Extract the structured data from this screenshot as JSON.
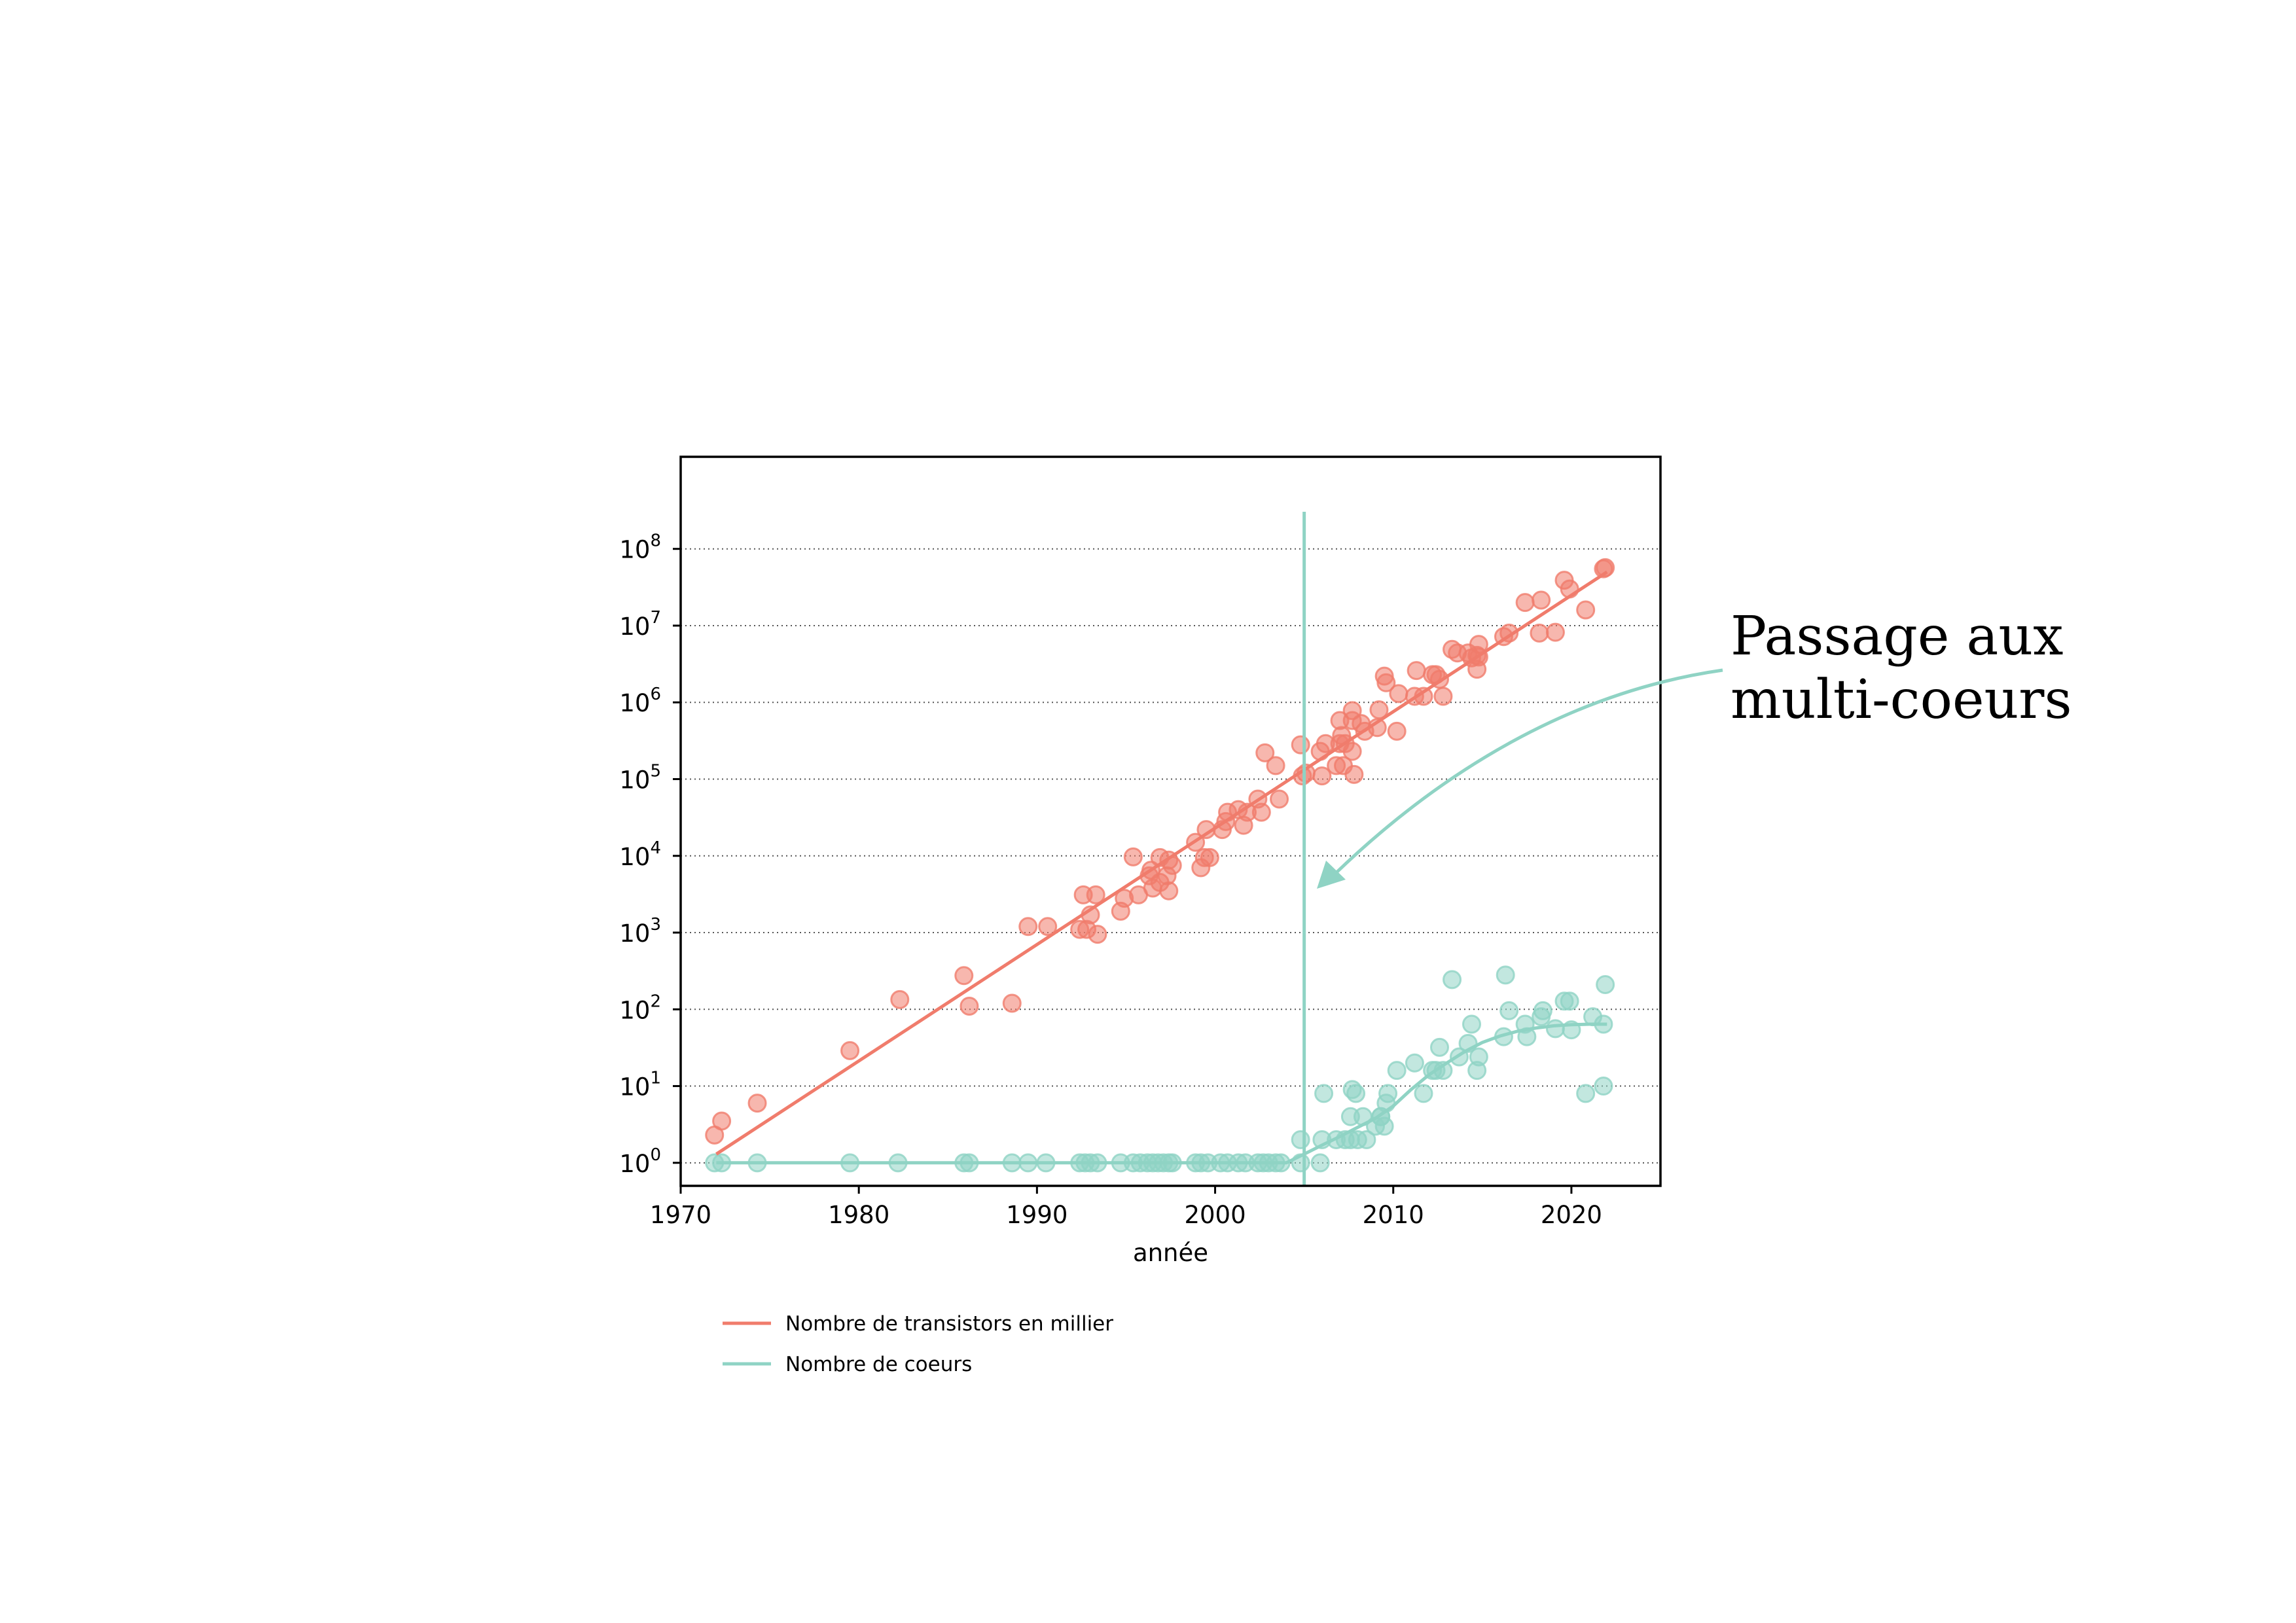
{
  "chart_data": {
    "type": "scatter",
    "xlabel": "année",
    "ylabel": "",
    "xlim": [
      1970,
      2025
    ],
    "ylim_log10": [
      -0.3,
      9.2
    ],
    "yscale": "log",
    "grid": "horizontal dotted",
    "legend_position": "below plot, left",
    "x_ticks": [
      "1970",
      "1980",
      "1990",
      "2000",
      "2010",
      "2020"
    ],
    "y_ticks": [
      {
        "base": "10",
        "exp": "0"
      },
      {
        "base": "10",
        "exp": "1"
      },
      {
        "base": "10",
        "exp": "2"
      },
      {
        "base": "10",
        "exp": "3"
      },
      {
        "base": "10",
        "exp": "4"
      },
      {
        "base": "10",
        "exp": "5"
      },
      {
        "base": "10",
        "exp": "6"
      },
      {
        "base": "10",
        "exp": "7"
      },
      {
        "base": "10",
        "exp": "8"
      }
    ],
    "vertical_line_year": 2005,
    "annotation": {
      "line1": "Passage aux",
      "line2": "multi-coeurs"
    },
    "series": [
      {
        "name": "Nombre de transistors en millier",
        "color": "#f07c6c",
        "trend": [
          [
            1972,
            1.3
          ],
          [
            2022,
            50000000
          ]
        ],
        "points": [
          [
            1971.9,
            2.3
          ],
          [
            1972.3,
            3.5
          ],
          [
            1974.3,
            6
          ],
          [
            1979.5,
            29
          ],
          [
            1982.3,
            134
          ],
          [
            1985.9,
            275
          ],
          [
            1986.2,
            110
          ],
          [
            1988.6,
            120
          ],
          [
            1989.5,
            1200
          ],
          [
            1990.6,
            1200
          ],
          [
            1992.4,
            1100
          ],
          [
            1992.6,
            3100
          ],
          [
            1992.8,
            1100
          ],
          [
            1993.0,
            1700
          ],
          [
            1993.3,
            3100
          ],
          [
            1993.4,
            950
          ],
          [
            1994.7,
            1900
          ],
          [
            1994.9,
            2800
          ],
          [
            1995.4,
            9700
          ],
          [
            1995.7,
            3100
          ],
          [
            1996.3,
            5500
          ],
          [
            1996.4,
            6500
          ],
          [
            1996.5,
            3800
          ],
          [
            1996.9,
            9500
          ],
          [
            1996.9,
            4500
          ],
          [
            1997.3,
            5500
          ],
          [
            1997.4,
            8800
          ],
          [
            1997.4,
            3500
          ],
          [
            1997.6,
            7500
          ],
          [
            1998.9,
            15000
          ],
          [
            1999.2,
            7000
          ],
          [
            1999.4,
            9500
          ],
          [
            1999.5,
            22000
          ],
          [
            1999.7,
            9500
          ],
          [
            2000.4,
            22000
          ],
          [
            2000.6,
            28000
          ],
          [
            2000.7,
            37000
          ],
          [
            2001.3,
            40000
          ],
          [
            2001.6,
            25000
          ],
          [
            2001.8,
            37000
          ],
          [
            2002.4,
            55000
          ],
          [
            2002.6,
            37000
          ],
          [
            2002.8,
            220000
          ],
          [
            2003.4,
            150000
          ],
          [
            2003.6,
            55000
          ],
          [
            2004.8,
            280000
          ],
          [
            2004.9,
            110000
          ],
          [
            2005.1,
            120000
          ],
          [
            2005.9,
            230000
          ],
          [
            2006.0,
            110000
          ],
          [
            2006.2,
            290000
          ],
          [
            2006.8,
            150000
          ],
          [
            2007.0,
            580000
          ],
          [
            2007.0,
            290000
          ],
          [
            2007.1,
            370000
          ],
          [
            2007.2,
            150000
          ],
          [
            2007.3,
            290000
          ],
          [
            2007.7,
            780000
          ],
          [
            2007.7,
            580000
          ],
          [
            2007.7,
            230000
          ],
          [
            2007.8,
            115000
          ],
          [
            2008.2,
            530000
          ],
          [
            2008.4,
            420000
          ],
          [
            2009.1,
            470000
          ],
          [
            2009.2,
            800000
          ],
          [
            2009.5,
            2200000
          ],
          [
            2009.6,
            1800000
          ],
          [
            2010.2,
            420000
          ],
          [
            2010.3,
            1300000
          ],
          [
            2011.2,
            1200000
          ],
          [
            2011.3,
            2600000
          ],
          [
            2011.7,
            1200000
          ],
          [
            2012.2,
            2300000
          ],
          [
            2012.4,
            2300000
          ],
          [
            2012.6,
            2000000
          ],
          [
            2012.8,
            1200000
          ],
          [
            2013.3,
            4900000
          ],
          [
            2013.6,
            4400000
          ],
          [
            2014.2,
            4400000
          ],
          [
            2014.4,
            3800000
          ],
          [
            2014.7,
            4100000
          ],
          [
            2014.7,
            2700000
          ],
          [
            2014.8,
            5700000
          ],
          [
            2014.8,
            3900000
          ],
          [
            2016.2,
            7200000
          ],
          [
            2016.5,
            8000000
          ],
          [
            2017.4,
            20000000
          ],
          [
            2018.2,
            8000000
          ],
          [
            2018.3,
            21500000
          ],
          [
            2019.1,
            8200000
          ],
          [
            2019.6,
            39000000
          ],
          [
            2019.9,
            30000000
          ],
          [
            2020.8,
            16000000
          ],
          [
            2021.8,
            55000000
          ],
          [
            2021.9,
            57000000
          ]
        ]
      },
      {
        "name": "Nombre de coeurs",
        "color": "#8fd3c4",
        "trend": [
          [
            1972,
            1
          ],
          [
            2004,
            1
          ],
          [
            2005,
            1.3
          ],
          [
            2006,
            1.7
          ],
          [
            2007,
            2.2
          ],
          [
            2008,
            2.9
          ],
          [
            2009,
            3.8
          ],
          [
            2010,
            5.5
          ],
          [
            2011,
            9
          ],
          [
            2012,
            14
          ],
          [
            2013,
            20
          ],
          [
            2014,
            28
          ],
          [
            2015,
            37
          ],
          [
            2016,
            45
          ],
          [
            2017,
            52
          ],
          [
            2018,
            57
          ],
          [
            2019,
            61
          ],
          [
            2020,
            63
          ],
          [
            2021,
            64
          ],
          [
            2022,
            64
          ]
        ],
        "points": [
          [
            1971.9,
            1
          ],
          [
            1972.3,
            1
          ],
          [
            1974.3,
            1
          ],
          [
            1979.5,
            1
          ],
          [
            1982.2,
            1
          ],
          [
            1985.9,
            1
          ],
          [
            1986.2,
            1
          ],
          [
            1988.6,
            1
          ],
          [
            1989.5,
            1
          ],
          [
            1990.5,
            1
          ],
          [
            1992.4,
            1
          ],
          [
            1992.7,
            1
          ],
          [
            1993.0,
            1
          ],
          [
            1993.4,
            1
          ],
          [
            1994.7,
            1
          ],
          [
            1995.4,
            1
          ],
          [
            1995.8,
            1
          ],
          [
            1996.2,
            1
          ],
          [
            1996.5,
            1
          ],
          [
            1996.8,
            1
          ],
          [
            1997.1,
            1
          ],
          [
            1997.4,
            1
          ],
          [
            1997.6,
            1
          ],
          [
            1998.9,
            1
          ],
          [
            1999.2,
            1
          ],
          [
            1999.6,
            1
          ],
          [
            2000.3,
            1
          ],
          [
            2000.7,
            1
          ],
          [
            2001.3,
            1
          ],
          [
            2001.7,
            1
          ],
          [
            2002.4,
            1
          ],
          [
            2002.7,
            1
          ],
          [
            2003.0,
            1
          ],
          [
            2003.4,
            1
          ],
          [
            2003.7,
            1
          ],
          [
            2004.8,
            1
          ],
          [
            2004.8,
            2
          ],
          [
            2005.9,
            1
          ],
          [
            2006.0,
            2
          ],
          [
            2006.1,
            8
          ],
          [
            2006.8,
            2
          ],
          [
            2007.3,
            2
          ],
          [
            2007.6,
            2
          ],
          [
            2007.6,
            4
          ],
          [
            2007.7,
            9
          ],
          [
            2007.9,
            8
          ],
          [
            2008.0,
            2
          ],
          [
            2008.3,
            4
          ],
          [
            2008.5,
            2
          ],
          [
            2009.0,
            3
          ],
          [
            2009.3,
            4
          ],
          [
            2009.3,
            4
          ],
          [
            2009.5,
            3
          ],
          [
            2009.6,
            6
          ],
          [
            2009.7,
            8
          ],
          [
            2010.2,
            16
          ],
          [
            2011.2,
            20
          ],
          [
            2011.7,
            8
          ],
          [
            2012.2,
            16
          ],
          [
            2012.4,
            16
          ],
          [
            2012.6,
            32
          ],
          [
            2012.8,
            16
          ],
          [
            2013.3,
            244
          ],
          [
            2013.7,
            24
          ],
          [
            2014.2,
            36
          ],
          [
            2014.4,
            64
          ],
          [
            2014.7,
            16
          ],
          [
            2014.8,
            24
          ],
          [
            2016.2,
            44
          ],
          [
            2016.3,
            280
          ],
          [
            2016.5,
            96
          ],
          [
            2017.4,
            64
          ],
          [
            2017.5,
            44
          ],
          [
            2018.3,
            80
          ],
          [
            2018.4,
            96
          ],
          [
            2019.1,
            56
          ],
          [
            2019.6,
            128
          ],
          [
            2019.9,
            128
          ],
          [
            2020.0,
            54
          ],
          [
            2020.8,
            8
          ],
          [
            2021.2,
            80
          ],
          [
            2021.8,
            10
          ],
          [
            2021.8,
            64
          ],
          [
            2021.9,
            210
          ]
        ]
      }
    ]
  }
}
